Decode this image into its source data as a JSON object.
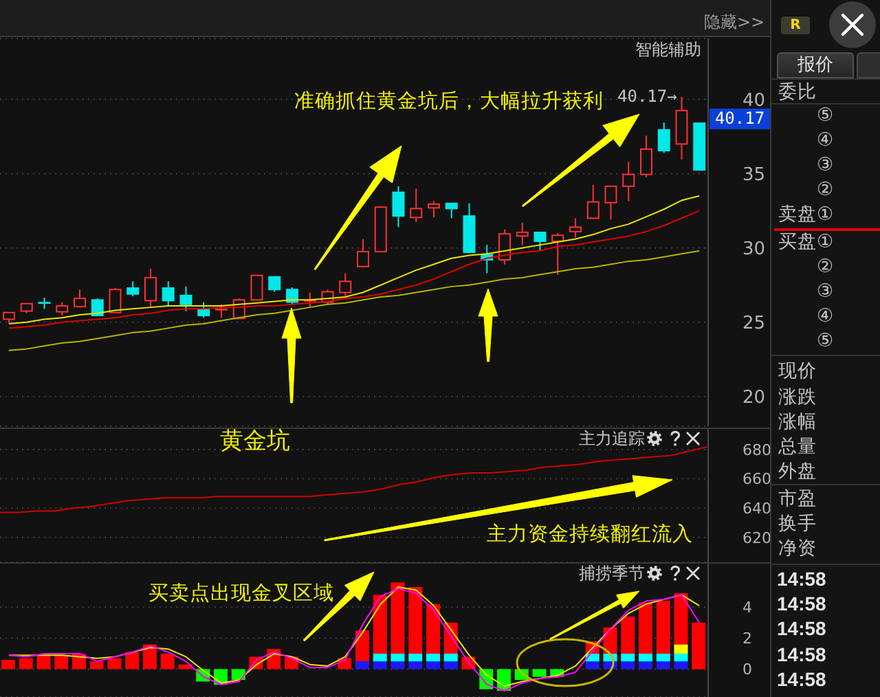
{
  "chart_data": [
    {
      "type": "candlestick",
      "title": "智能辅助",
      "categories": [
        null,
        null,
        null,
        null,
        null,
        null,
        null,
        null,
        null,
        null,
        null,
        null,
        null,
        null,
        null,
        null,
        null,
        null,
        null,
        null,
        null,
        null,
        null,
        null,
        null,
        null,
        null,
        null,
        null,
        null,
        null,
        null,
        null,
        null,
        null,
        null,
        null,
        null,
        null,
        null
      ],
      "ohlc": [
        [
          25.2,
          25.65,
          24.95,
          25.65
        ],
        [
          25.75,
          26.3,
          25.6,
          26.25
        ],
        [
          26.3,
          26.65,
          25.9,
          26.3
        ],
        [
          25.7,
          26.35,
          25.45,
          26.1
        ],
        [
          26.05,
          27.2,
          26.0,
          26.6
        ],
        [
          26.5,
          26.6,
          25.45,
          25.45
        ],
        [
          25.65,
          27.3,
          25.65,
          27.2
        ],
        [
          27.3,
          27.75,
          26.75,
          26.9
        ],
        [
          26.45,
          28.6,
          26.0,
          28.0
        ],
        [
          27.3,
          27.75,
          26.1,
          26.45
        ],
        [
          26.8,
          27.4,
          25.75,
          26.2
        ],
        [
          25.85,
          26.35,
          25.3,
          25.45
        ],
        [
          25.85,
          26.2,
          25.3,
          25.85
        ],
        [
          25.25,
          26.6,
          25.25,
          26.5
        ],
        [
          26.5,
          28.15,
          26.5,
          28.15
        ],
        [
          28.05,
          28.05,
          27.05,
          27.2
        ],
        [
          27.2,
          27.35,
          26.2,
          26.35
        ],
        [
          26.45,
          27.0,
          26.0,
          26.45
        ],
        [
          26.35,
          27.2,
          26.2,
          27.05
        ],
        [
          27.0,
          28.3,
          26.75,
          27.75
        ],
        [
          28.75,
          30.6,
          28.7,
          29.75
        ],
        [
          29.75,
          32.8,
          29.75,
          32.75
        ],
        [
          33.75,
          34.15,
          31.4,
          32.15
        ],
        [
          32.05,
          34.0,
          31.75,
          32.65
        ],
        [
          32.7,
          33.15,
          32.05,
          32.95
        ],
        [
          33.0,
          33.0,
          32.0,
          32.65
        ],
        [
          32.15,
          33.0,
          29.7,
          29.7
        ],
        [
          29.55,
          30.2,
          28.3,
          29.2
        ],
        [
          29.2,
          31.25,
          28.9,
          30.95
        ],
        [
          30.8,
          31.7,
          30.2,
          31.05
        ],
        [
          31.05,
          31.05,
          29.8,
          30.45
        ],
        [
          30.45,
          31.0,
          28.2,
          30.85
        ],
        [
          31.1,
          32.0,
          30.7,
          31.4
        ],
        [
          32.0,
          34.25,
          32.0,
          33.1
        ],
        [
          33.05,
          34.15,
          31.9,
          34.15
        ],
        [
          34.15,
          35.8,
          33.15,
          34.95
        ],
        [
          34.95,
          37.55,
          34.75,
          36.65
        ],
        [
          37.95,
          38.45,
          36.4,
          36.55
        ],
        [
          37.0,
          40.17,
          35.95,
          39.25
        ],
        [
          38.4,
          38.4,
          35.25,
          35.25
        ]
      ],
      "colors": [
        "#ff3030",
        "#ff3030",
        "#00e8e8",
        "#ff3030",
        "#ff3030",
        "#00e8e8",
        "#ff3030",
        "#00e8e8",
        "#ff3030",
        "#00e8e8",
        "#00e8e8",
        "#00e8e8",
        "#ff3030",
        "#ff3030",
        "#ff3030",
        "#00e8e8",
        "#00e8e8",
        "#ff3030",
        "#ff3030",
        "#ff3030",
        "#ff3030",
        "#ff3030",
        "#00e8e8",
        "#ff3030",
        "#ff3030",
        "#00e8e8",
        "#00e8e8",
        "#00e8e8",
        "#ff3030",
        "#ff3030",
        "#00e8e8",
        "#ff3030",
        "#ff3030",
        "#ff3030",
        "#ff3030",
        "#ff3030",
        "#ff3030",
        "#00e8e8",
        "#ff3030",
        "#00e8e8"
      ],
      "series": [
        {
          "type": "line",
          "color": "#e6e600",
          "values": [
            24.9,
            25.0,
            25.2,
            25.3,
            25.5,
            25.6,
            25.8,
            25.9,
            26.0,
            26.1,
            26.1,
            26.1,
            26.1,
            26.2,
            26.3,
            26.4,
            26.5,
            26.5,
            26.6,
            26.7,
            27.0,
            27.5,
            28.0,
            28.5,
            28.9,
            29.3,
            29.5,
            29.6,
            29.8,
            30.0,
            30.2,
            30.4,
            30.6,
            30.9,
            31.3,
            31.6,
            32.1,
            32.6,
            33.2,
            33.5
          ]
        },
        {
          "type": "line",
          "color": "#e00000",
          "values": [
            24.6,
            24.7,
            24.8,
            25.0,
            25.1,
            25.2,
            25.3,
            25.5,
            25.6,
            25.8,
            25.9,
            25.9,
            26.0,
            26.0,
            26.1,
            26.1,
            26.2,
            26.3,
            26.4,
            26.6,
            26.7,
            26.9,
            27.2,
            27.5,
            27.9,
            28.4,
            28.9,
            29.3,
            29.5,
            29.7,
            29.8,
            30.1,
            30.2,
            30.4,
            30.6,
            30.8,
            31.1,
            31.5,
            32.0,
            32.5
          ]
        },
        {
          "type": "line",
          "color": "#b4b400",
          "values": [
            23.1,
            23.2,
            23.4,
            23.6,
            23.7,
            23.9,
            24.1,
            24.3,
            24.4,
            24.6,
            24.8,
            24.9,
            25.1,
            25.3,
            25.5,
            25.6,
            25.8,
            26.0,
            26.2,
            26.3,
            26.5,
            26.7,
            26.8,
            27.0,
            27.2,
            27.4,
            27.5,
            27.7,
            27.9,
            28.0,
            28.2,
            28.4,
            28.6,
            28.7,
            28.9,
            29.1,
            29.2,
            29.4,
            29.6,
            29.8
          ]
        }
      ],
      "ylim": [
        18,
        44.1
      ],
      "yticks": [
        20,
        25,
        30,
        35,
        40
      ],
      "grid": "y",
      "tick_labels": "y",
      "marker": "none",
      "annotations": [
        "隐藏>>",
        "准确抓住黄金坑后，大幅拉升获利",
        "40.17→",
        "40.17"
      ]
    },
    {
      "type": "line",
      "title": "主力追踪",
      "categories": [
        null,
        null,
        null,
        null,
        null,
        null,
        null,
        null,
        null,
        null,
        null,
        null,
        null,
        null,
        null,
        null,
        null,
        null,
        null,
        null,
        null,
        null,
        null,
        null,
        null,
        null,
        null,
        null,
        null,
        null,
        null,
        null,
        null,
        null,
        null,
        null,
        null,
        null,
        null,
        null
      ],
      "series": [
        {
          "color": "#d40000",
          "values": [
            637,
            637,
            638,
            638,
            640,
            641,
            643,
            645,
            646,
            647,
            647,
            647,
            648,
            648,
            648,
            648,
            648,
            648,
            649,
            650,
            651,
            653,
            656,
            658,
            661,
            663,
            664,
            664,
            665,
            666,
            668,
            669,
            670,
            672,
            673,
            674,
            675,
            676,
            679,
            682
          ]
        }
      ],
      "ylim": [
        603,
        695
      ],
      "yticks": [
        620,
        640,
        660,
        680
      ],
      "grid": "y",
      "tick_labels": "y",
      "marker": "none",
      "annotations": [
        "黄金坑",
        "主力资金持续翻红流入"
      ]
    },
    {
      "type": "bar",
      "stacked": true,
      "title": "捕捞季节",
      "categories": [
        null,
        null,
        null,
        null,
        null,
        null,
        null,
        null,
        null,
        null,
        null,
        null,
        null,
        null,
        null,
        null,
        null,
        null,
        null,
        null,
        null,
        null,
        null,
        null,
        null,
        null,
        null,
        null,
        null,
        null,
        null,
        null,
        null,
        null,
        null,
        null,
        null,
        null,
        null,
        null
      ],
      "series": [
        {
          "color": "#1a1aff",
          "values": [
            null,
            null,
            null,
            null,
            null,
            null,
            null,
            null,
            null,
            null,
            null,
            null,
            null,
            null,
            null,
            null,
            null,
            null,
            null,
            null,
            0.5,
            0.5,
            0.5,
            0.5,
            0.5,
            0.5,
            null,
            null,
            null,
            null,
            null,
            null,
            null,
            0.5,
            0.5,
            0.5,
            0.5,
            0.5,
            0.5,
            null
          ]
        },
        {
          "color": "#00ffff",
          "values": [
            null,
            null,
            null,
            null,
            null,
            null,
            null,
            null,
            null,
            null,
            null,
            null,
            null,
            null,
            null,
            null,
            null,
            null,
            null,
            null,
            null,
            0.5,
            0.5,
            0.5,
            0.5,
            0.5,
            null,
            null,
            null,
            null,
            null,
            null,
            null,
            0.5,
            0.5,
            0.5,
            0.5,
            0.5,
            0.5,
            null
          ]
        },
        {
          "color": "#ffff00",
          "values": [
            null,
            null,
            null,
            null,
            null,
            null,
            null,
            null,
            null,
            null,
            null,
            null,
            null,
            null,
            null,
            null,
            null,
            null,
            null,
            null,
            null,
            null,
            null,
            null,
            null,
            null,
            null,
            null,
            null,
            null,
            null,
            null,
            null,
            null,
            null,
            null,
            null,
            null,
            0.6,
            null
          ]
        },
        {
          "color": "#ff0000",
          "values": [
            0.6,
            0.7,
            0.9,
            0.9,
            1.0,
            0.5,
            0.7,
            1.1,
            1.6,
            1.0,
            0.3,
            null,
            null,
            null,
            0.8,
            1.3,
            0.8,
            null,
            null,
            0.7,
            2.0,
            3.8,
            4.6,
            4.3,
            3.2,
            2.0,
            0.8,
            null,
            null,
            null,
            null,
            null,
            null,
            0.8,
            1.7,
            2.4,
            3.3,
            3.4,
            3.3,
            3.0
          ]
        },
        {
          "color": "#00ff00",
          "values": [
            null,
            null,
            null,
            null,
            null,
            null,
            null,
            null,
            null,
            null,
            null,
            -0.8,
            -1.0,
            -0.7,
            null,
            null,
            null,
            null,
            null,
            null,
            null,
            null,
            null,
            null,
            null,
            null,
            null,
            -1.3,
            -1.4,
            -0.7,
            -0.5,
            -0.5,
            null,
            null,
            null,
            null,
            null,
            null,
            null,
            null
          ]
        },
        {
          "type": "line",
          "color": "#e6e600",
          "values": [
            0.9,
            0.9,
            0.9,
            0.9,
            0.8,
            0.7,
            0.8,
            1.1,
            1.4,
            1.3,
            0.8,
            -0.1,
            -0.9,
            -0.7,
            0.3,
            1.0,
            0.8,
            0.3,
            0.2,
            0.8,
            2.4,
            4.2,
            5.3,
            5.1,
            4.1,
            2.5,
            0.9,
            -0.4,
            -1.1,
            -0.8,
            -0.6,
            -0.4,
            0.2,
            1.4,
            2.6,
            3.6,
            4.2,
            4.5,
            4.8,
            4.1
          ]
        },
        {
          "type": "line",
          "color": "#ff00ff",
          "values": [
            0.9,
            0.8,
            1.0,
            1.0,
            1.0,
            0.5,
            0.8,
            1.1,
            1.5,
            1.1,
            0.5,
            -0.5,
            -1.0,
            -0.8,
            0.6,
            1.1,
            0.7,
            0.1,
            0.1,
            0.6,
            2.9,
            4.7,
            5.2,
            4.9,
            3.8,
            2.1,
            0.4,
            -1.0,
            -1.4,
            -0.9,
            -0.6,
            -0.5,
            -0.2,
            1.2,
            2.6,
            3.8,
            4.4,
            4.5,
            4.8,
            3.0
          ]
        }
      ],
      "ylim": [
        -1.8,
        6.9
      ],
      "yticks": [
        0,
        2,
        4
      ],
      "grid": "y",
      "tick_labels": "y",
      "marker": "none",
      "annotations": [
        "买卖点出现金叉区域"
      ]
    },
    {
      "type": "other",
      "annotations": [
        "R",
        "报价",
        "委比",
        "⑤",
        "④",
        "③",
        "②",
        "卖盘①",
        "买盘①",
        "②",
        "③",
        "④",
        "⑤",
        "现价",
        "涨跌",
        "涨幅",
        "总量",
        "外盘",
        "市盈",
        "换手",
        "净资",
        "14:58",
        "14:58",
        "14:58",
        "14:58",
        "14:58"
      ]
    }
  ]
}
